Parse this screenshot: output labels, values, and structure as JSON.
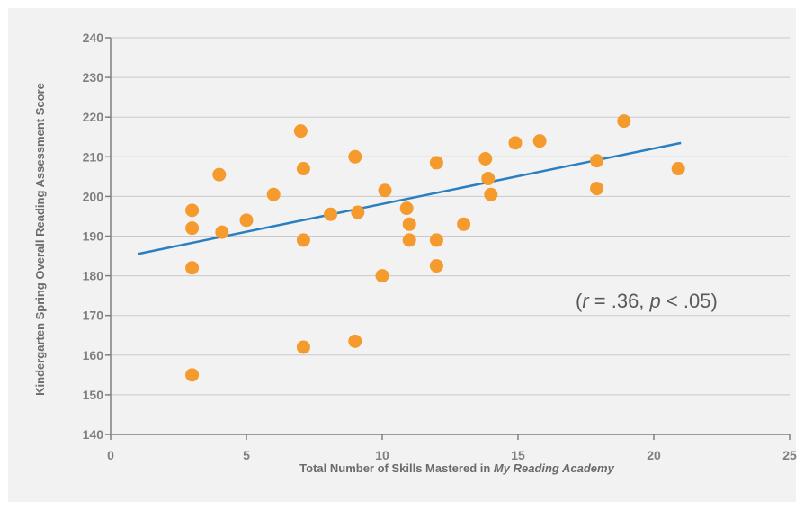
{
  "chart_data": {
    "type": "scatter",
    "title": "",
    "xlabel_prefix": "Total Number of Skills Mastered in ",
    "xlabel_italic": "My Reading Academy",
    "ylabel": "Kindergarten Spring Overall Reading Assessment Score",
    "xlim": [
      0,
      25
    ],
    "ylim": [
      140,
      240
    ],
    "x_ticks": [
      0,
      5,
      10,
      15,
      20,
      25
    ],
    "y_ticks": [
      140,
      150,
      160,
      170,
      180,
      190,
      200,
      210,
      220,
      230,
      240
    ],
    "grid": "horizontal",
    "colors": {
      "points": "#f59a2c",
      "trend": "#2a7fc1",
      "grid": "#c9c9c9",
      "background": "#f2f2f2"
    },
    "points": [
      {
        "x": 3,
        "y": 155
      },
      {
        "x": 3,
        "y": 182
      },
      {
        "x": 3,
        "y": 192
      },
      {
        "x": 3,
        "y": 196.5
      },
      {
        "x": 4,
        "y": 205.5
      },
      {
        "x": 4.1,
        "y": 191
      },
      {
        "x": 5,
        "y": 194
      },
      {
        "x": 6,
        "y": 200.5
      },
      {
        "x": 7,
        "y": 216.5
      },
      {
        "x": 7.1,
        "y": 207
      },
      {
        "x": 7.1,
        "y": 189
      },
      {
        "x": 7.1,
        "y": 162
      },
      {
        "x": 8.1,
        "y": 195.5
      },
      {
        "x": 9,
        "y": 210
      },
      {
        "x": 9.1,
        "y": 196
      },
      {
        "x": 9,
        "y": 163.5
      },
      {
        "x": 10,
        "y": 180
      },
      {
        "x": 10.1,
        "y": 201.5
      },
      {
        "x": 10.9,
        "y": 197
      },
      {
        "x": 11,
        "y": 193
      },
      {
        "x": 11,
        "y": 189
      },
      {
        "x": 12,
        "y": 208.5
      },
      {
        "x": 12,
        "y": 189
      },
      {
        "x": 12,
        "y": 182.5
      },
      {
        "x": 13,
        "y": 193
      },
      {
        "x": 13.8,
        "y": 209.5
      },
      {
        "x": 13.9,
        "y": 204.5
      },
      {
        "x": 14,
        "y": 200.5
      },
      {
        "x": 14.9,
        "y": 213.5
      },
      {
        "x": 15.8,
        "y": 214
      },
      {
        "x": 17.9,
        "y": 209
      },
      {
        "x": 17.9,
        "y": 202
      },
      {
        "x": 18.9,
        "y": 219
      },
      {
        "x": 20.9,
        "y": 207
      }
    ],
    "trendline": {
      "x": [
        1,
        21
      ],
      "y": [
        185.5,
        213.5
      ]
    },
    "annotation": {
      "open": "(",
      "r": "r",
      "r_value": " = .36, ",
      "p": "p",
      "p_value": " < .05)"
    }
  }
}
